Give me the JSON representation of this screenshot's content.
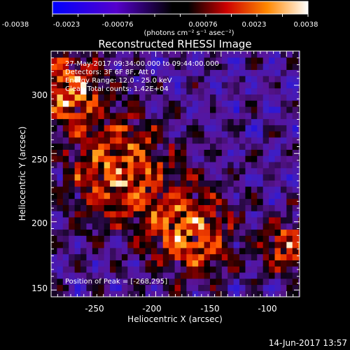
{
  "colorbar": {
    "tick_labels": [
      "-0.0038",
      "-0.0023",
      "-0.00076",
      "0.00076",
      "0.0023",
      "0.0038"
    ],
    "unit_label": "(photons cm⁻² s⁻¹ asec⁻²)"
  },
  "image": {
    "title": "Reconstructed RHESSI Image",
    "overlay_lines": [
      "27-May-2017 09:34:00.000 to 09:44:00.000",
      "Detectors: 3F 6F 8F, Att 0",
      "Energy Range: 12.0 - 25.0 keV",
      "Clean     Total counts: 1.42E+04"
    ],
    "peak_text": "Position of Peak = [-268,295]"
  },
  "axes": {
    "xlabel": "Heliocentric X (arcsec)",
    "ylabel": "Heliocentric Y (arcsec)",
    "xticks": [
      "-250",
      "-200",
      "-150",
      "-100"
    ],
    "yticks": [
      "150",
      "200",
      "250",
      "300"
    ]
  },
  "footer": {
    "timestamp": "14-Jun-2017 13:57"
  },
  "chart_data": {
    "type": "heatmap",
    "title": "Reconstructed RHESSI Image",
    "xlabel": "Heliocentric X (arcsec)",
    "ylabel": "Heliocentric Y (arcsec)",
    "xlim": [
      -280,
      -90
    ],
    "ylim": [
      145,
      325
    ],
    "colorbar_range": [
      -0.0038,
      0.0038
    ],
    "peak": [
      -268,
      295
    ],
    "bright_sources": [
      {
        "x": -268,
        "y": 295
      },
      {
        "x": -230,
        "y": 235
      },
      {
        "x": -175,
        "y": 190
      },
      {
        "x": -100,
        "y": 180
      }
    ]
  }
}
